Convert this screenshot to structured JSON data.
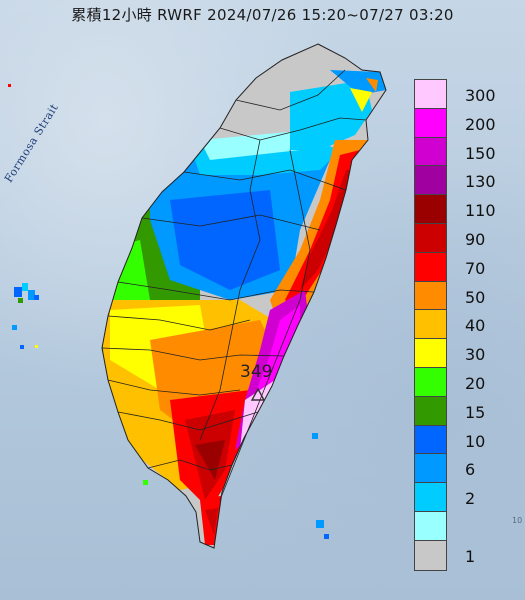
{
  "title": "累積12小時 RWRF 2024/07/26 15:20~07/27 03:20",
  "strait_label": "Formosa Strait",
  "corner_mark": "10",
  "peak_value": "349",
  "legend": {
    "levels": [
      {
        "label": "300",
        "color": "#ffc8ff"
      },
      {
        "label": "200",
        "color": "#ff00ff"
      },
      {
        "label": "150",
        "color": "#d000d0"
      },
      {
        "label": "130",
        "color": "#a000a0"
      },
      {
        "label": "110",
        "color": "#9a0000"
      },
      {
        "label": "90",
        "color": "#cc0000"
      },
      {
        "label": "70",
        "color": "#ff0000"
      },
      {
        "label": "50",
        "color": "#ff8c00"
      },
      {
        "label": "40",
        "color": "#ffc000"
      },
      {
        "label": "30",
        "color": "#ffff00"
      },
      {
        "label": "20",
        "color": "#33ff00"
      },
      {
        "label": "15",
        "color": "#339900"
      },
      {
        "label": "10",
        "color": "#0066ff"
      },
      {
        "label": "6",
        "color": "#0099ff"
      },
      {
        "label": "2",
        "color": "#00ccff"
      },
      {
        "label": "",
        "color": "#99ffff"
      },
      {
        "label": "1",
        "color": "#c8c8c8"
      }
    ]
  }
}
